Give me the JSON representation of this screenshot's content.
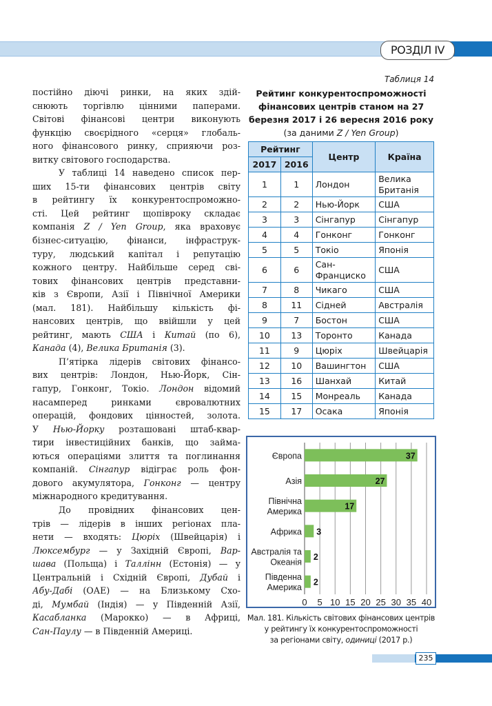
{
  "header": {
    "section": "РОЗДІЛ IV"
  },
  "body_lines": [
    {
      "p": "n",
      "s": [
        [
          "постійно діючі ринки, на яких здій-",
          0
        ]
      ]
    },
    {
      "p": "n",
      "s": [
        [
          "снюють торгівлю цінними паперами.",
          0
        ]
      ]
    },
    {
      "p": "n",
      "s": [
        [
          "Світові фінансові центри виконують",
          0
        ]
      ]
    },
    {
      "p": "n",
      "s": [
        [
          "функцію своєрідного «серця» глобаль-",
          0
        ]
      ]
    },
    {
      "p": "n",
      "s": [
        [
          "ного фінансового ринку, сприяючи роз-",
          0
        ]
      ]
    },
    {
      "p": "last",
      "s": [
        [
          "витку світового господарства.",
          0
        ]
      ]
    },
    {
      "p": "indent",
      "s": [
        [
          "У таблиці 14 наведено список пер-",
          0
        ]
      ]
    },
    {
      "p": "n",
      "s": [
        [
          "ших 15-ти фінансових центрів світу",
          0
        ]
      ]
    },
    {
      "p": "n",
      "s": [
        [
          "в рейтингу їх конкурентоспроможно-",
          0
        ]
      ]
    },
    {
      "p": "n",
      "s": [
        [
          "сті. Цей рейтинг щопівроку складає",
          0
        ]
      ]
    },
    {
      "p": "n",
      "s": [
        [
          "компанія ",
          0
        ],
        [
          "Z / Yen Group",
          1
        ],
        [
          ", яка враховує",
          0
        ]
      ]
    },
    {
      "p": "n",
      "s": [
        [
          "бізнес-ситуацію, фінанси, інфраструк-",
          0
        ]
      ]
    },
    {
      "p": "n",
      "s": [
        [
          "туру, людський капітал і репутацію",
          0
        ]
      ]
    },
    {
      "p": "n",
      "s": [
        [
          "кожного центру. Найбільше серед сві-",
          0
        ]
      ]
    },
    {
      "p": "n",
      "s": [
        [
          "тових фінансових центрів представни-",
          0
        ]
      ]
    },
    {
      "p": "n",
      "s": [
        [
          "ків з Європи, Азії і Північної Америки",
          0
        ]
      ]
    },
    {
      "p": "n",
      "s": [
        [
          "(мал. 181). Найбільшу кількість фі-",
          0
        ]
      ]
    },
    {
      "p": "n",
      "s": [
        [
          "нансових центрів, що ввійшли у цей",
          0
        ]
      ]
    },
    {
      "p": "n",
      "s": [
        [
          "рейтинг, мають ",
          0
        ],
        [
          "США",
          1
        ],
        [
          " і ",
          0
        ],
        [
          "Китай",
          1
        ],
        [
          " (по 6),",
          0
        ]
      ]
    },
    {
      "p": "last",
      "s": [
        [
          "Канада",
          1
        ],
        [
          " (4), ",
          0
        ],
        [
          "Велика Британія",
          1
        ],
        [
          " (3).",
          0
        ]
      ]
    },
    {
      "p": "indent",
      "s": [
        [
          "П’ятірка лідерів світових фінансо-",
          0
        ]
      ]
    },
    {
      "p": "n",
      "s": [
        [
          "вих центрів: Лондон, Нью-Йорк, Сін-",
          0
        ]
      ]
    },
    {
      "p": "n",
      "s": [
        [
          "гапур, Гонконг, Токіо. ",
          0
        ],
        [
          "Лондон",
          1
        ],
        [
          " відомий",
          0
        ]
      ]
    },
    {
      "p": "n",
      "s": [
        [
          "насамперед ринками євровалютних",
          0
        ]
      ]
    },
    {
      "p": "n",
      "s": [
        [
          "операцій, фондових цінностей, золота.",
          0
        ]
      ]
    },
    {
      "p": "n",
      "s": [
        [
          "У ",
          0
        ],
        [
          "Нью-Йорку",
          1
        ],
        [
          " розташовані штаб-квар-",
          0
        ]
      ]
    },
    {
      "p": "n",
      "s": [
        [
          "тири інвестиційних банків, що займа-",
          0
        ]
      ]
    },
    {
      "p": "n",
      "s": [
        [
          "ються операціями злиття та поглинання",
          0
        ]
      ]
    },
    {
      "p": "n",
      "s": [
        [
          "компаній. ",
          0
        ],
        [
          "Сінгапур",
          1
        ],
        [
          " відіграє роль фон-",
          0
        ]
      ]
    },
    {
      "p": "n",
      "s": [
        [
          "дового акумулятора, ",
          0
        ],
        [
          "Гонконг",
          1
        ],
        [
          " — центру",
          0
        ]
      ]
    },
    {
      "p": "last",
      "s": [
        [
          "міжнародного кредитування.",
          0
        ]
      ]
    },
    {
      "p": "indent",
      "s": [
        [
          "До провідних фінансових цен-",
          0
        ]
      ]
    },
    {
      "p": "n",
      "s": [
        [
          "трів — лідерів в інших регіонах пла-",
          0
        ]
      ]
    },
    {
      "p": "n",
      "s": [
        [
          "нети — входять: ",
          0
        ],
        [
          "Цюріх",
          1
        ],
        [
          " (Швейцарія) і",
          0
        ]
      ]
    },
    {
      "p": "n",
      "s": [
        [
          "Люксембург",
          1
        ],
        [
          " — у Західній Європі, ",
          0
        ],
        [
          "Вар-",
          1
        ]
      ]
    },
    {
      "p": "n",
      "s": [
        [
          "шава",
          1
        ],
        [
          " (Польща) і ",
          0
        ],
        [
          "Таллінн",
          1
        ],
        [
          " (Естонія) — у",
          0
        ]
      ]
    },
    {
      "p": "n",
      "s": [
        [
          "Центральній і Східній Європі, ",
          0
        ],
        [
          "Дубай",
          1
        ],
        [
          " і",
          0
        ]
      ]
    },
    {
      "p": "n",
      "s": [
        [
          "Абу-Дабі",
          1
        ],
        [
          " (ОАЕ) — на Близькому Схо-",
          0
        ]
      ]
    },
    {
      "p": "n",
      "s": [
        [
          "ді, ",
          0
        ],
        [
          "Мумбай",
          1
        ],
        [
          " (Індія) — у Південній Азії,",
          0
        ]
      ]
    },
    {
      "p": "n",
      "s": [
        [
          "Касабланка",
          1
        ],
        [
          " (Марокко) — в Африці,",
          0
        ]
      ]
    },
    {
      "p": "last",
      "s": [
        [
          "Сан-Паулу",
          1
        ],
        [
          " — в Південній Америці.",
          0
        ]
      ]
    }
  ],
  "table": {
    "label": "Таблиця 14",
    "title_bold": "Рейтинг конкурентоспроможності фінансових центрів станом на 27 березня 2017 і 26 вересня 2016 року",
    "title_source_prefix": " (за даними ",
    "title_source_italic": "Z / Yen Group",
    "title_source_suffix": ")",
    "headers": {
      "rating": "Рейтинг",
      "y2017": "2017",
      "y2016": "2016",
      "center": "Центр",
      "country": "Країна"
    },
    "rows": [
      [
        "1",
        "1",
        "Лондон",
        "Велика Британія"
      ],
      [
        "2",
        "2",
        "Нью-Йорк",
        "США"
      ],
      [
        "3",
        "3",
        "Сінгапур",
        "Сінгапур"
      ],
      [
        "4",
        "4",
        "Гонконг",
        "Гонконг"
      ],
      [
        "5",
        "5",
        "Токіо",
        "Японія"
      ],
      [
        "6",
        "6",
        "Сан-Франциско",
        "США"
      ],
      [
        "7",
        "8",
        "Чикаго",
        "США"
      ],
      [
        "8",
        "11",
        "Сідней",
        "Австралія"
      ],
      [
        "9",
        "7",
        "Бостон",
        "США"
      ],
      [
        "10",
        "13",
        "Торонто",
        "Канада"
      ],
      [
        "11",
        "9",
        "Цюріх",
        "Швейцарія"
      ],
      [
        "12",
        "10",
        "Вашингтон",
        "США"
      ],
      [
        "13",
        "16",
        "Шанхай",
        "Китай"
      ],
      [
        "14",
        "15",
        "Монреаль",
        "Канада"
      ],
      [
        "15",
        "17",
        "Осака",
        "Японія"
      ]
    ]
  },
  "chart_data": {
    "type": "bar",
    "orientation": "horizontal",
    "categories": [
      [
        "Європа"
      ],
      [
        "Азія"
      ],
      [
        "Північна",
        "Америка"
      ],
      [
        "Африка"
      ],
      [
        "Австралія та",
        "Океанія"
      ],
      [
        "Південна",
        "Америка"
      ]
    ],
    "values": [
      37,
      27,
      17,
      3,
      2,
      2
    ],
    "xlim": [
      0,
      40
    ],
    "xticks": [
      0,
      5,
      10,
      15,
      20,
      25,
      30,
      35,
      40
    ],
    "grid": "vertical",
    "bar_color": "#7dbf5a",
    "data_labels": true
  },
  "caption": {
    "line1": "Мал. 181. Кількість світових фінансових центрів",
    "line2": "у рейтингу їх конкурентоспроможності",
    "line3_prefix": "за регіонами світу, ",
    "line3_italic": "одиниці",
    "line3_suffix": " (2017 р.)"
  },
  "page_number": "235",
  "colors": {
    "accent": "#1773bd",
    "band": "#c5dcf0",
    "table_border": "#1f7fc4",
    "table_header": "#c9e0f4"
  }
}
